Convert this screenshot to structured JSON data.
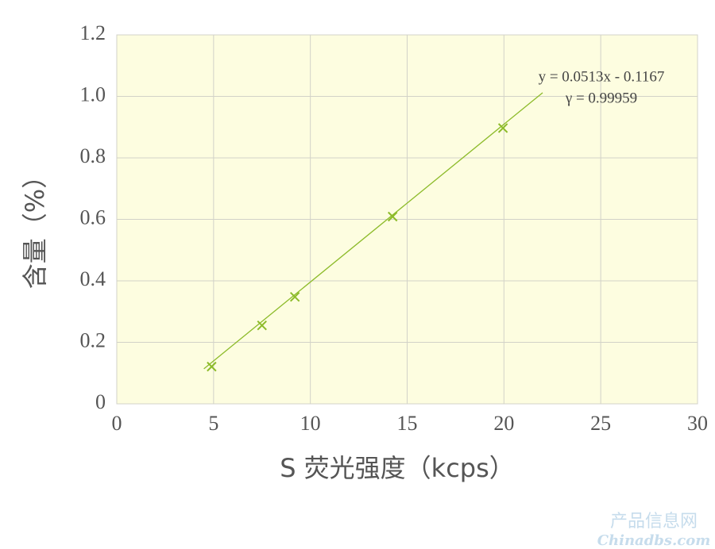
{
  "chart_data": {
    "type": "scatter",
    "x_label": "S  荧光强度（kcps）",
    "y_label": "含量（%）",
    "series": [
      {
        "name": null,
        "color": "#8dbb2a",
        "x": [
          4.9,
          7.5,
          9.2,
          14.25,
          19.95
        ],
        "values": [
          0.121,
          0.255,
          0.348,
          0.609,
          0.897
        ]
      }
    ],
    "fit_line": {
      "color": "#8dbb2a",
      "x": [
        4.5,
        22
      ],
      "y": [
        0.114,
        1.012
      ]
    },
    "annotations": [
      "y = 0.0513x - 0.1167",
      "γ = 0.99959"
    ],
    "xlim": [
      0,
      30
    ],
    "xticks": [
      0,
      5,
      10,
      15,
      20,
      25,
      30
    ],
    "ylim": [
      0,
      1.2
    ],
    "yticks": [
      0,
      0.2,
      0.4,
      0.6,
      0.8,
      {
        "value": 1,
        "label": "1.0"
      },
      1.2
    ],
    "grid": true,
    "background": "#fdfde0"
  },
  "watermark": [
    "产品信息网",
    "Chinadbs.com"
  ]
}
